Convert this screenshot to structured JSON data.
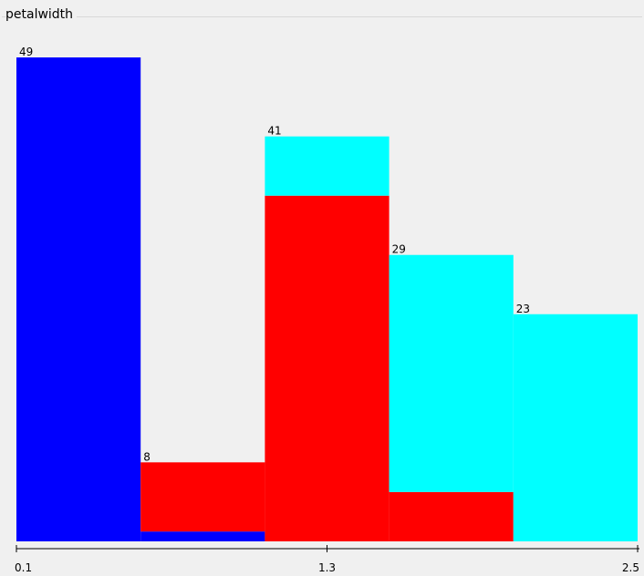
{
  "panel": {
    "title": "petalwidth"
  },
  "chart_data": {
    "type": "bar",
    "stacked": true,
    "title": "petalwidth",
    "xlabel": "",
    "ylabel": "",
    "x_tick_labels": [
      "0.1",
      "1.3",
      "2.5"
    ],
    "x_range": [
      0.1,
      2.5
    ],
    "ylim": [
      0,
      49
    ],
    "bins": [
      {
        "start": 0.1,
        "end": 0.58,
        "total": 49
      },
      {
        "start": 0.58,
        "end": 1.06,
        "total": 8
      },
      {
        "start": 1.06,
        "end": 1.54,
        "total": 41
      },
      {
        "start": 1.54,
        "end": 2.02,
        "total": 29
      },
      {
        "start": 2.02,
        "end": 2.5,
        "total": 23
      }
    ],
    "series": [
      {
        "values": [
          49,
          1,
          0,
          0,
          0
        ],
        "color": "#0000ff"
      },
      {
        "values": [
          0,
          7,
          35,
          5,
          0
        ],
        "color": "#ff0000"
      },
      {
        "values": [
          0,
          0,
          6,
          24,
          23
        ],
        "color": "#00ffff"
      }
    ],
    "grid": false,
    "legend": "none"
  }
}
